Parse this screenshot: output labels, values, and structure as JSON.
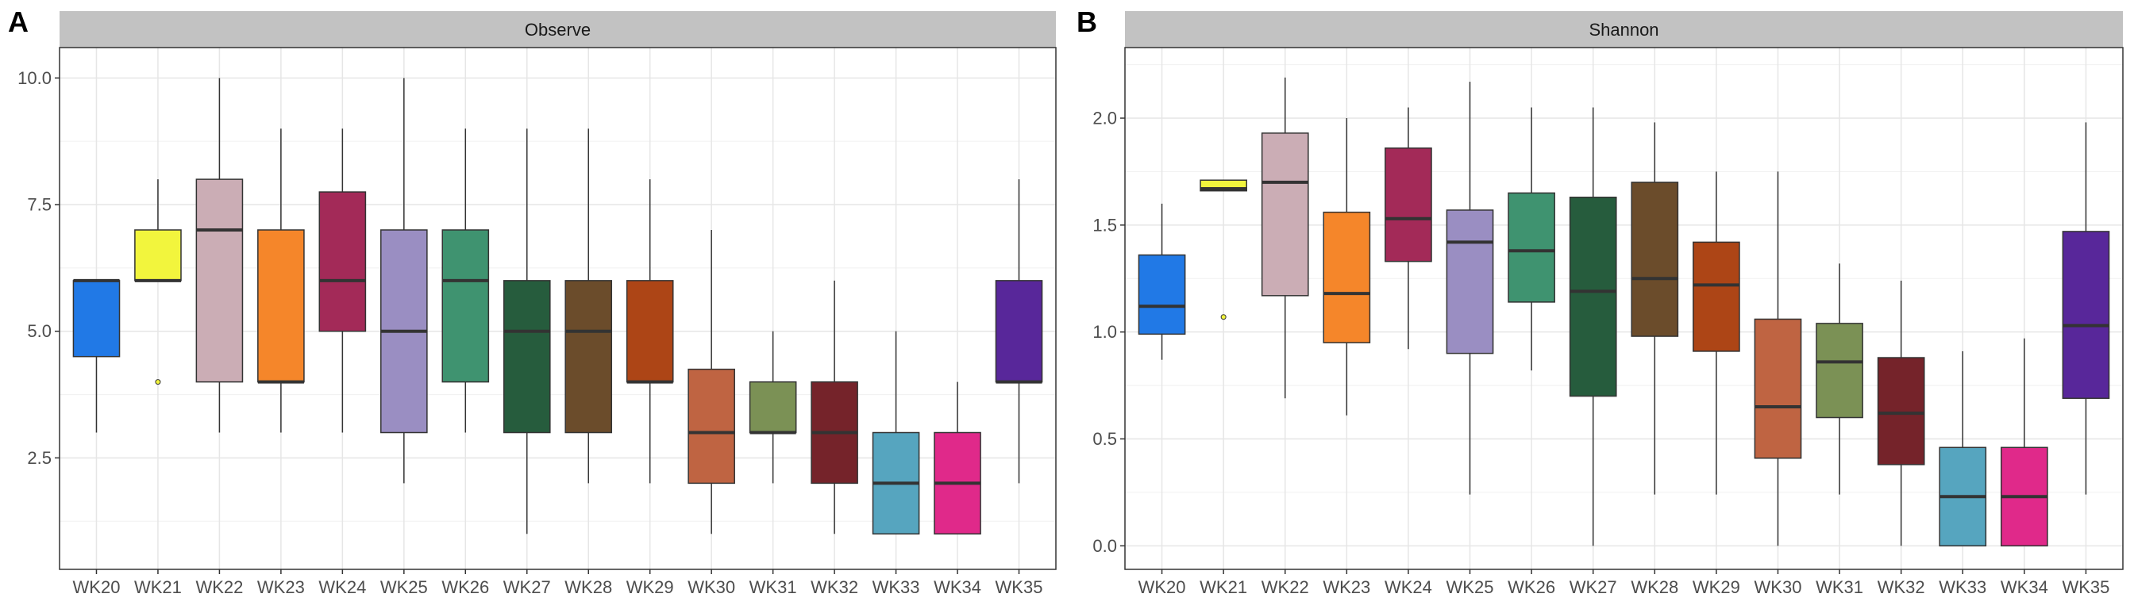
{
  "panels": [
    {
      "letter": "A",
      "strip": "Observe",
      "chart_data": {
        "type": "box",
        "categories": [
          "WK20",
          "WK21",
          "WK22",
          "WK23",
          "WK24",
          "WK25",
          "WK26",
          "WK27",
          "WK28",
          "WK29",
          "WK30",
          "WK31",
          "WK32",
          "WK33",
          "WK34",
          "WK35"
        ],
        "ylim": [
          0.3,
          10.6
        ],
        "yticks": [
          2.5,
          5.0,
          7.5,
          10.0
        ],
        "ytick_labels": [
          "2.5",
          "5.0",
          "7.5",
          "10.0"
        ],
        "grid": true,
        "legend": "none",
        "boxes": [
          {
            "whisker_low": 3,
            "q1": 4.5,
            "median": 6,
            "q3": 6,
            "whisker_high": 6,
            "outliers": [],
            "color": "#2179E6"
          },
          {
            "whisker_low": 6,
            "q1": 6,
            "median": 6,
            "q3": 7,
            "whisker_high": 8,
            "outliers": [
              4
            ],
            "color": "#F2F53D"
          },
          {
            "whisker_low": 3,
            "q1": 4,
            "median": 7,
            "q3": 8,
            "whisker_high": 10,
            "outliers": [],
            "color": "#CBADB5"
          },
          {
            "whisker_low": 3,
            "q1": 4,
            "median": 4,
            "q3": 7,
            "whisker_high": 9,
            "outliers": [],
            "color": "#F5862A"
          },
          {
            "whisker_low": 3,
            "q1": 5,
            "median": 6,
            "q3": 7.75,
            "whisker_high": 9,
            "outliers": [],
            "color": "#A32A58"
          },
          {
            "whisker_low": 2,
            "q1": 3,
            "median": 5,
            "q3": 7,
            "whisker_high": 10,
            "outliers": [],
            "color": "#9A8EC2"
          },
          {
            "whisker_low": 3,
            "q1": 4,
            "median": 6,
            "q3": 7,
            "whisker_high": 9,
            "outliers": [],
            "color": "#3F9370"
          },
          {
            "whisker_low": 1,
            "q1": 3,
            "median": 5,
            "q3": 6,
            "whisker_high": 9,
            "outliers": [],
            "color": "#265C3D"
          },
          {
            "whisker_low": 2,
            "q1": 3,
            "median": 5,
            "q3": 6,
            "whisker_high": 9,
            "outliers": [],
            "color": "#6B4C2B"
          },
          {
            "whisker_low": 2,
            "q1": 4,
            "median": 4,
            "q3": 6,
            "whisker_high": 8,
            "outliers": [],
            "color": "#AD4516"
          },
          {
            "whisker_low": 1,
            "q1": 2,
            "median": 3,
            "q3": 4.25,
            "whisker_high": 7,
            "outliers": [],
            "color": "#BF6442"
          },
          {
            "whisker_low": 2,
            "q1": 3,
            "median": 3,
            "q3": 4,
            "whisker_high": 5,
            "outliers": [],
            "color": "#7B9155"
          },
          {
            "whisker_low": 1,
            "q1": 2,
            "median": 3,
            "q3": 4,
            "whisker_high": 6,
            "outliers": [],
            "color": "#75232A"
          },
          {
            "whisker_low": 1,
            "q1": 1,
            "median": 2,
            "q3": 3,
            "whisker_high": 5,
            "outliers": [],
            "color": "#56A5BF"
          },
          {
            "whisker_low": 1,
            "q1": 1,
            "median": 2,
            "q3": 3,
            "whisker_high": 4,
            "outliers": [],
            "color": "#E0298A"
          },
          {
            "whisker_low": 2,
            "q1": 4,
            "median": 4,
            "q3": 6,
            "whisker_high": 8,
            "outliers": [],
            "color": "#58279A"
          }
        ]
      }
    },
    {
      "letter": "B",
      "strip": "Shannon",
      "chart_data": {
        "type": "box",
        "categories": [
          "WK20",
          "WK21",
          "WK22",
          "WK23",
          "WK24",
          "WK25",
          "WK26",
          "WK27",
          "WK28",
          "WK29",
          "WK30",
          "WK31",
          "WK32",
          "WK33",
          "WK34",
          "WK35"
        ],
        "ylim": [
          -0.11,
          2.33
        ],
        "yticks": [
          0.0,
          0.5,
          1.0,
          1.5,
          2.0
        ],
        "ytick_labels": [
          "0.0",
          "0.5",
          "1.0",
          "1.5",
          "2.0"
        ],
        "grid": true,
        "legend": "none",
        "boxes": [
          {
            "whisker_low": 0.87,
            "q1": 0.99,
            "median": 1.12,
            "q3": 1.36,
            "whisker_high": 1.6,
            "outliers": [],
            "color": "#2179E6"
          },
          {
            "whisker_low": 1.66,
            "q1": 1.66,
            "median": 1.67,
            "q3": 1.71,
            "whisker_high": 1.71,
            "outliers": [
              1.07
            ],
            "color": "#F2F53D"
          },
          {
            "whisker_low": 0.69,
            "q1": 1.17,
            "median": 1.7,
            "q3": 1.93,
            "whisker_high": 2.19,
            "outliers": [],
            "color": "#CBADB5"
          },
          {
            "whisker_low": 0.61,
            "q1": 0.95,
            "median": 1.18,
            "q3": 1.56,
            "whisker_high": 2.0,
            "outliers": [],
            "color": "#F5862A"
          },
          {
            "whisker_low": 0.92,
            "q1": 1.33,
            "median": 1.53,
            "q3": 1.86,
            "whisker_high": 2.05,
            "outliers": [],
            "color": "#A32A58"
          },
          {
            "whisker_low": 0.24,
            "q1": 0.9,
            "median": 1.42,
            "q3": 1.57,
            "whisker_high": 2.17,
            "outliers": [],
            "color": "#9A8EC2"
          },
          {
            "whisker_low": 0.82,
            "q1": 1.14,
            "median": 1.38,
            "q3": 1.65,
            "whisker_high": 2.05,
            "outliers": [],
            "color": "#3F9370"
          },
          {
            "whisker_low": 0.0,
            "q1": 0.7,
            "median": 1.19,
            "q3": 1.63,
            "whisker_high": 2.05,
            "outliers": [],
            "color": "#265C3D"
          },
          {
            "whisker_low": 0.24,
            "q1": 0.98,
            "median": 1.25,
            "q3": 1.7,
            "whisker_high": 1.98,
            "outliers": [],
            "color": "#6B4C2B"
          },
          {
            "whisker_low": 0.24,
            "q1": 0.91,
            "median": 1.22,
            "q3": 1.42,
            "whisker_high": 1.75,
            "outliers": [],
            "color": "#AD4516"
          },
          {
            "whisker_low": 0.0,
            "q1": 0.41,
            "median": 0.65,
            "q3": 1.06,
            "whisker_high": 1.75,
            "outliers": [],
            "color": "#BF6442"
          },
          {
            "whisker_low": 0.24,
            "q1": 0.6,
            "median": 0.86,
            "q3": 1.04,
            "whisker_high": 1.32,
            "outliers": [],
            "color": "#7B9155"
          },
          {
            "whisker_low": 0.0,
            "q1": 0.38,
            "median": 0.62,
            "q3": 0.88,
            "whisker_high": 1.24,
            "outliers": [],
            "color": "#75232A"
          },
          {
            "whisker_low": 0.0,
            "q1": 0.0,
            "median": 0.23,
            "q3": 0.46,
            "whisker_high": 0.91,
            "outliers": [],
            "color": "#56A5BF"
          },
          {
            "whisker_low": 0.0,
            "q1": 0.0,
            "median": 0.23,
            "q3": 0.46,
            "whisker_high": 0.97,
            "outliers": [],
            "color": "#E0298A"
          },
          {
            "whisker_low": 0.24,
            "q1": 0.69,
            "median": 1.03,
            "q3": 1.47,
            "whisker_high": 1.98,
            "outliers": [],
            "color": "#58279A"
          }
        ]
      }
    }
  ]
}
